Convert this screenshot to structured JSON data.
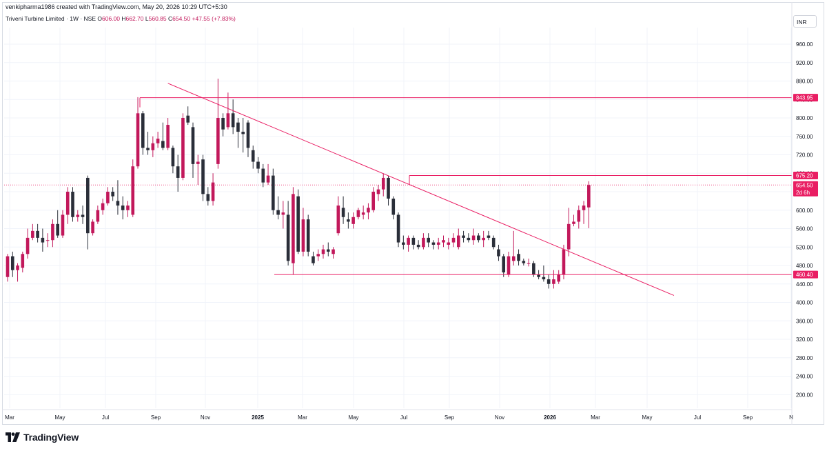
{
  "credit": "venkipharma1986 created with TradingView.com, May 20, 2026 10:29 UTC+5:30",
  "legend": {
    "symbol": "Triveni Turbine Limited · 1W · NSE",
    "open_key": "O",
    "open": "606.00",
    "high_key": "H",
    "high": "662.70",
    "low_key": "L",
    "low": "560.85",
    "close_key": "C",
    "close": "654.50",
    "change": "+47.55 (+7.83%)"
  },
  "currency": "INR",
  "brand": {
    "name": "TradingView",
    "icon": "tradingview-logo-icon"
  },
  "colors": {
    "up": "#c2185b",
    "down": "#2a2e39",
    "annotation": "#e91e63",
    "grid": "#f0f3fa",
    "text": "#131722"
  },
  "chart_data": {
    "type": "candlestick",
    "timeframe": "1W",
    "ylim": [
      170,
      990
    ],
    "y_ticks": [
      200,
      240,
      280,
      320,
      360,
      400,
      440,
      480,
      520,
      560,
      600,
      640,
      680,
      720,
      760,
      800,
      840,
      880,
      920,
      960
    ],
    "x_ticks": [
      "Mar",
      "May",
      "Jul",
      "Sep",
      "Nov",
      "2025",
      "Mar",
      "May",
      "Jul",
      "Sep",
      "Nov",
      "2026",
      "Mar",
      "May",
      "Jul",
      "Sep",
      "N"
    ],
    "horizontal_levels": [
      843.95,
      675.2,
      460.4
    ],
    "price_tags": [
      {
        "value": 843.95,
        "label": "843.95"
      },
      {
        "value": 675.2,
        "label": "675.20"
      },
      {
        "value": 654.5,
        "label": "654.50",
        "sub": "2d 6h"
      },
      {
        "value": 460.4,
        "label": "460.40"
      }
    ],
    "last_price": 654.5,
    "trendline": {
      "start": [
        "2024-10-14",
        875
      ],
      "end": [
        "2026-09-21",
        415
      ]
    },
    "candles": [
      {
        "d": "2024-03-04",
        "o": 455,
        "h": 505,
        "l": 445,
        "c": 500
      },
      {
        "d": "2024-03-11",
        "o": 500,
        "h": 510,
        "l": 455,
        "c": 470
      },
      {
        "d": "2024-03-18",
        "o": 470,
        "h": 485,
        "l": 445,
        "c": 480
      },
      {
        "d": "2024-03-25",
        "o": 475,
        "h": 510,
        "l": 465,
        "c": 505
      },
      {
        "d": "2024-04-01",
        "o": 505,
        "h": 560,
        "l": 495,
        "c": 540
      },
      {
        "d": "2024-04-08",
        "o": 540,
        "h": 570,
        "l": 535,
        "c": 555
      },
      {
        "d": "2024-04-15",
        "o": 555,
        "h": 570,
        "l": 530,
        "c": 540
      },
      {
        "d": "2024-04-22",
        "o": 540,
        "h": 560,
        "l": 510,
        "c": 530
      },
      {
        "d": "2024-04-29",
        "o": 535,
        "h": 550,
        "l": 520,
        "c": 535
      },
      {
        "d": "2024-05-06",
        "o": 535,
        "h": 580,
        "l": 520,
        "c": 570
      },
      {
        "d": "2024-05-13",
        "o": 570,
        "h": 600,
        "l": 540,
        "c": 545
      },
      {
        "d": "2024-05-20",
        "o": 545,
        "h": 600,
        "l": 540,
        "c": 590
      },
      {
        "d": "2024-05-27",
        "o": 590,
        "h": 650,
        "l": 570,
        "c": 640
      },
      {
        "d": "2024-06-03",
        "o": 640,
        "h": 650,
        "l": 575,
        "c": 585
      },
      {
        "d": "2024-06-10",
        "o": 585,
        "h": 600,
        "l": 575,
        "c": 590
      },
      {
        "d": "2024-06-17",
        "o": 590,
        "h": 610,
        "l": 570,
        "c": 585
      },
      {
        "d": "2024-06-24",
        "o": 670,
        "h": 675,
        "l": 515,
        "c": 550
      },
      {
        "d": "2024-07-01",
        "o": 550,
        "h": 580,
        "l": 545,
        "c": 575
      },
      {
        "d": "2024-07-08",
        "o": 575,
        "h": 610,
        "l": 570,
        "c": 600
      },
      {
        "d": "2024-07-15",
        "o": 600,
        "h": 625,
        "l": 590,
        "c": 615
      },
      {
        "d": "2024-07-22",
        "o": 615,
        "h": 650,
        "l": 610,
        "c": 640
      },
      {
        "d": "2024-07-29",
        "o": 640,
        "h": 650,
        "l": 620,
        "c": 630
      },
      {
        "d": "2024-08-05",
        "o": 620,
        "h": 665,
        "l": 590,
        "c": 610
      },
      {
        "d": "2024-08-12",
        "o": 610,
        "h": 630,
        "l": 580,
        "c": 600
      },
      {
        "d": "2024-08-19",
        "o": 600,
        "h": 620,
        "l": 585,
        "c": 610
      },
      {
        "d": "2024-08-26",
        "o": 590,
        "h": 710,
        "l": 585,
        "c": 695
      },
      {
        "d": "2024-09-02",
        "o": 695,
        "h": 845,
        "l": 690,
        "c": 810
      },
      {
        "d": "2024-09-09",
        "o": 810,
        "h": 815,
        "l": 720,
        "c": 735
      },
      {
        "d": "2024-09-16",
        "o": 735,
        "h": 770,
        "l": 720,
        "c": 730
      },
      {
        "d": "2024-09-23",
        "o": 730,
        "h": 760,
        "l": 715,
        "c": 745
      },
      {
        "d": "2024-09-30",
        "o": 745,
        "h": 770,
        "l": 735,
        "c": 755
      },
      {
        "d": "2024-10-07",
        "o": 750,
        "h": 790,
        "l": 730,
        "c": 735
      },
      {
        "d": "2024-10-14",
        "o": 735,
        "h": 800,
        "l": 730,
        "c": 785
      },
      {
        "d": "2024-10-21",
        "o": 735,
        "h": 740,
        "l": 680,
        "c": 695
      },
      {
        "d": "2024-10-28",
        "o": 695,
        "h": 720,
        "l": 640,
        "c": 670
      },
      {
        "d": "2024-11-04",
        "o": 670,
        "h": 810,
        "l": 665,
        "c": 800
      },
      {
        "d": "2024-11-11",
        "o": 805,
        "h": 825,
        "l": 785,
        "c": 790
      },
      {
        "d": "2024-11-18",
        "o": 780,
        "h": 790,
        "l": 670,
        "c": 700
      },
      {
        "d": "2024-11-25",
        "o": 700,
        "h": 720,
        "l": 655,
        "c": 705
      },
      {
        "d": "2024-12-02",
        "o": 710,
        "h": 720,
        "l": 620,
        "c": 635
      },
      {
        "d": "2024-12-09",
        "o": 635,
        "h": 650,
        "l": 610,
        "c": 620
      },
      {
        "d": "2024-12-16",
        "o": 620,
        "h": 680,
        "l": 610,
        "c": 660
      },
      {
        "d": "2024-12-23",
        "o": 700,
        "h": 885,
        "l": 690,
        "c": 800
      },
      {
        "d": "2024-12-30",
        "o": 800,
        "h": 810,
        "l": 760,
        "c": 775
      },
      {
        "d": "2025-01-06",
        "o": 780,
        "h": 855,
        "l": 775,
        "c": 810
      },
      {
        "d": "2025-01-13",
        "o": 810,
        "h": 840,
        "l": 765,
        "c": 780
      },
      {
        "d": "2025-01-20",
        "o": 790,
        "h": 800,
        "l": 735,
        "c": 770
      },
      {
        "d": "2025-01-27",
        "o": 770,
        "h": 800,
        "l": 725,
        "c": 765
      },
      {
        "d": "2025-02-03",
        "o": 790,
        "h": 795,
        "l": 715,
        "c": 735
      },
      {
        "d": "2025-02-10",
        "o": 730,
        "h": 740,
        "l": 690,
        "c": 705
      },
      {
        "d": "2025-02-17",
        "o": 705,
        "h": 715,
        "l": 680,
        "c": 690
      },
      {
        "d": "2025-02-24",
        "o": 690,
        "h": 700,
        "l": 650,
        "c": 660
      },
      {
        "d": "2025-03-03",
        "o": 660,
        "h": 700,
        "l": 655,
        "c": 675
      },
      {
        "d": "2025-03-10",
        "o": 675,
        "h": 690,
        "l": 590,
        "c": 600
      },
      {
        "d": "2025-03-17",
        "o": 600,
        "h": 630,
        "l": 580,
        "c": 590
      },
      {
        "d": "2025-03-24",
        "o": 590,
        "h": 620,
        "l": 560,
        "c": 595
      },
      {
        "d": "2025-03-31",
        "o": 590,
        "h": 620,
        "l": 480,
        "c": 490
      },
      {
        "d": "2025-04-07",
        "o": 485,
        "h": 650,
        "l": 460,
        "c": 635
      },
      {
        "d": "2025-04-14",
        "o": 630,
        "h": 645,
        "l": 505,
        "c": 510
      },
      {
        "d": "2025-04-21",
        "o": 510,
        "h": 605,
        "l": 500,
        "c": 580
      },
      {
        "d": "2025-04-28",
        "o": 580,
        "h": 590,
        "l": 500,
        "c": 510
      },
      {
        "d": "2025-05-05",
        "o": 500,
        "h": 510,
        "l": 480,
        "c": 485
      },
      {
        "d": "2025-05-12",
        "o": 500,
        "h": 515,
        "l": 490,
        "c": 505
      },
      {
        "d": "2025-05-19",
        "o": 505,
        "h": 525,
        "l": 495,
        "c": 515
      },
      {
        "d": "2025-05-26",
        "o": 515,
        "h": 530,
        "l": 500,
        "c": 510
      },
      {
        "d": "2025-06-02",
        "o": 505,
        "h": 520,
        "l": 495,
        "c": 515
      },
      {
        "d": "2025-06-09",
        "o": 550,
        "h": 630,
        "l": 545,
        "c": 610
      },
      {
        "d": "2025-06-16",
        "o": 605,
        "h": 630,
        "l": 570,
        "c": 585
      },
      {
        "d": "2025-06-23",
        "o": 580,
        "h": 595,
        "l": 560,
        "c": 575
      },
      {
        "d": "2025-06-30",
        "o": 570,
        "h": 595,
        "l": 560,
        "c": 585
      },
      {
        "d": "2025-07-07",
        "o": 585,
        "h": 605,
        "l": 580,
        "c": 600
      },
      {
        "d": "2025-07-14",
        "o": 590,
        "h": 610,
        "l": 580,
        "c": 595
      },
      {
        "d": "2025-07-21",
        "o": 595,
        "h": 615,
        "l": 580,
        "c": 605
      },
      {
        "d": "2025-07-28",
        "o": 600,
        "h": 650,
        "l": 595,
        "c": 640
      },
      {
        "d": "2025-08-04",
        "o": 635,
        "h": 655,
        "l": 620,
        "c": 645
      },
      {
        "d": "2025-08-11",
        "o": 645,
        "h": 680,
        "l": 630,
        "c": 670
      },
      {
        "d": "2025-08-18",
        "o": 670,
        "h": 675,
        "l": 610,
        "c": 625
      },
      {
        "d": "2025-08-25",
        "o": 625,
        "h": 630,
        "l": 580,
        "c": 590
      },
      {
        "d": "2025-09-01",
        "o": 590,
        "h": 595,
        "l": 520,
        "c": 530
      },
      {
        "d": "2025-09-08",
        "o": 530,
        "h": 545,
        "l": 515,
        "c": 525
      },
      {
        "d": "2025-09-15",
        "o": 525,
        "h": 545,
        "l": 510,
        "c": 540
      },
      {
        "d": "2025-09-22",
        "o": 540,
        "h": 545,
        "l": 515,
        "c": 525
      },
      {
        "d": "2025-09-29",
        "o": 525,
        "h": 535,
        "l": 515,
        "c": 520
      },
      {
        "d": "2025-10-06",
        "o": 520,
        "h": 550,
        "l": 515,
        "c": 540
      },
      {
        "d": "2025-10-13",
        "o": 540,
        "h": 550,
        "l": 520,
        "c": 530
      },
      {
        "d": "2025-10-20",
        "o": 530,
        "h": 535,
        "l": 515,
        "c": 525
      },
      {
        "d": "2025-10-27",
        "o": 525,
        "h": 540,
        "l": 515,
        "c": 530
      },
      {
        "d": "2025-11-03",
        "o": 530,
        "h": 545,
        "l": 520,
        "c": 535
      },
      {
        "d": "2025-11-10",
        "o": 525,
        "h": 540,
        "l": 515,
        "c": 530
      },
      {
        "d": "2025-11-17",
        "o": 530,
        "h": 550,
        "l": 520,
        "c": 540
      },
      {
        "d": "2025-11-24",
        "o": 520,
        "h": 560,
        "l": 515,
        "c": 545
      },
      {
        "d": "2025-12-01",
        "o": 545,
        "h": 555,
        "l": 530,
        "c": 540
      },
      {
        "d": "2025-12-08",
        "o": 540,
        "h": 550,
        "l": 530,
        "c": 535
      },
      {
        "d": "2025-12-15",
        "o": 535,
        "h": 560,
        "l": 525,
        "c": 545
      },
      {
        "d": "2025-12-22",
        "o": 545,
        "h": 550,
        "l": 530,
        "c": 535
      },
      {
        "d": "2025-12-29",
        "o": 535,
        "h": 555,
        "l": 520,
        "c": 540
      },
      {
        "d": "2026-01-05",
        "o": 545,
        "h": 555,
        "l": 535,
        "c": 540
      },
      {
        "d": "2026-01-12",
        "o": 540,
        "h": 545,
        "l": 515,
        "c": 520
      },
      {
        "d": "2026-01-19",
        "o": 515,
        "h": 525,
        "l": 490,
        "c": 500
      },
      {
        "d": "2026-01-26",
        "o": 500,
        "h": 505,
        "l": 455,
        "c": 465
      },
      {
        "d": "2026-02-02",
        "o": 460,
        "h": 510,
        "l": 455,
        "c": 500
      },
      {
        "d": "2026-02-09",
        "o": 490,
        "h": 555,
        "l": 480,
        "c": 500
      },
      {
        "d": "2026-02-16",
        "o": 505,
        "h": 515,
        "l": 480,
        "c": 490
      },
      {
        "d": "2026-02-23",
        "o": 490,
        "h": 495,
        "l": 480,
        "c": 485
      },
      {
        "d": "2026-03-02",
        "o": 485,
        "h": 495,
        "l": 478,
        "c": 485
      },
      {
        "d": "2026-03-09",
        "o": 485,
        "h": 490,
        "l": 455,
        "c": 460
      },
      {
        "d": "2026-03-16",
        "o": 460,
        "h": 470,
        "l": 450,
        "c": 455
      },
      {
        "d": "2026-03-23",
        "o": 455,
        "h": 480,
        "l": 445,
        "c": 450
      },
      {
        "d": "2026-03-30",
        "o": 450,
        "h": 460,
        "l": 430,
        "c": 440
      },
      {
        "d": "2026-04-06",
        "o": 440,
        "h": 470,
        "l": 430,
        "c": 450
      },
      {
        "d": "2026-04-13",
        "o": 445,
        "h": 470,
        "l": 440,
        "c": 460
      },
      {
        "d": "2026-04-20",
        "o": 460,
        "h": 525,
        "l": 450,
        "c": 515
      },
      {
        "d": "2026-04-27",
        "o": 515,
        "h": 605,
        "l": 500,
        "c": 570
      },
      {
        "d": "2026-05-04",
        "o": 570,
        "h": 590,
        "l": 565,
        "c": 575
      },
      {
        "d": "2026-05-11",
        "o": 575,
        "h": 610,
        "l": 560,
        "c": 600
      },
      {
        "d": "2026-05-18",
        "o": 600,
        "h": 620,
        "l": 570,
        "c": 610
      },
      {
        "d": "2026-05-25",
        "o": 606,
        "h": 662.7,
        "l": 560.85,
        "c": 654.5
      }
    ]
  }
}
